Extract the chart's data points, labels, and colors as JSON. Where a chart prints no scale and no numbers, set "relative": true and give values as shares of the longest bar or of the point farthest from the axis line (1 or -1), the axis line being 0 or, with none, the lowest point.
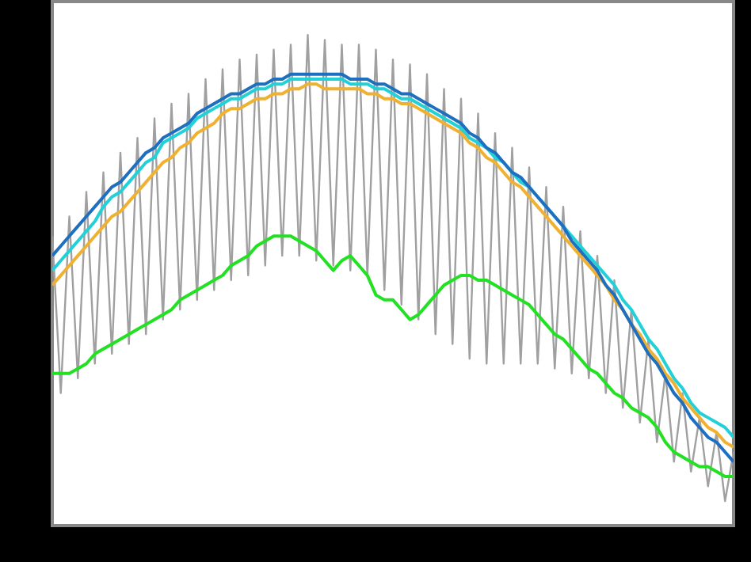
{
  "chart_data": {
    "type": "line",
    "relative": true,
    "categories": [
      null,
      null,
      null,
      null,
      null,
      null,
      null,
      null,
      null,
      null,
      null,
      null,
      null,
      null,
      null,
      null,
      null,
      null,
      null,
      null,
      null,
      null,
      null,
      null,
      null,
      null,
      null,
      null,
      null,
      null,
      null,
      null,
      null,
      null,
      null,
      null,
      null,
      null,
      null,
      null,
      null,
      null,
      null,
      null,
      null,
      null,
      null,
      null,
      null,
      null,
      null,
      null,
      null,
      null,
      null,
      null,
      null,
      null,
      null,
      null,
      null,
      null,
      null,
      null,
      null,
      null,
      null,
      null,
      null,
      null,
      null,
      null,
      null,
      null,
      null,
      null,
      null,
      null,
      null,
      null,
      null
    ],
    "series": [
      {
        "color": "#a0a0a0",
        "values": [
          0.59,
          0.27,
          0.63,
          0.3,
          0.68,
          0.33,
          0.72,
          0.35,
          0.76,
          0.37,
          0.79,
          0.39,
          0.83,
          0.42,
          0.86,
          0.44,
          0.88,
          0.46,
          0.91,
          0.48,
          0.93,
          0.5,
          0.95,
          0.51,
          0.96,
          0.53,
          0.97,
          0.55,
          0.98,
          0.55,
          1.0,
          0.54,
          0.99,
          0.53,
          0.98,
          0.52,
          0.98,
          0.51,
          0.97,
          0.48,
          0.95,
          0.45,
          0.94,
          0.42,
          0.92,
          0.39,
          0.89,
          0.37,
          0.87,
          0.34,
          0.84,
          0.33,
          0.8,
          0.33,
          0.77,
          0.33,
          0.73,
          0.33,
          0.69,
          0.32,
          0.65,
          0.31,
          0.6,
          0.3,
          0.55,
          0.27,
          0.5,
          0.24,
          0.44,
          0.21,
          0.38,
          0.17,
          0.31,
          0.13,
          0.27,
          0.11,
          0.22,
          0.08,
          0.19,
          0.05,
          0.15
        ]
      },
      {
        "color": "#22e022",
        "values": [
          0.31,
          0.31,
          0.31,
          0.32,
          0.33,
          0.35,
          0.36,
          0.37,
          0.38,
          0.39,
          0.4,
          0.41,
          0.42,
          0.43,
          0.44,
          0.46,
          0.47,
          0.48,
          0.49,
          0.5,
          0.51,
          0.53,
          0.54,
          0.55,
          0.57,
          0.58,
          0.59,
          0.59,
          0.59,
          0.58,
          0.57,
          0.56,
          0.54,
          0.52,
          0.54,
          0.55,
          0.53,
          0.51,
          0.47,
          0.46,
          0.46,
          0.44,
          0.42,
          0.43,
          0.45,
          0.47,
          0.49,
          0.5,
          0.51,
          0.51,
          0.5,
          0.5,
          0.49,
          0.48,
          0.47,
          0.46,
          0.45,
          0.43,
          0.41,
          0.39,
          0.38,
          0.36,
          0.34,
          0.32,
          0.31,
          0.29,
          0.27,
          0.26,
          0.24,
          0.23,
          0.22,
          0.2,
          0.17,
          0.15,
          0.14,
          0.13,
          0.12,
          0.12,
          0.11,
          0.1,
          0.1
        ]
      },
      {
        "color": "#22d0d8",
        "values": [
          0.52,
          0.54,
          0.56,
          0.58,
          0.6,
          0.62,
          0.65,
          0.67,
          0.68,
          0.7,
          0.72,
          0.74,
          0.75,
          0.78,
          0.79,
          0.8,
          0.81,
          0.83,
          0.84,
          0.85,
          0.86,
          0.87,
          0.87,
          0.88,
          0.89,
          0.89,
          0.9,
          0.9,
          0.91,
          0.91,
          0.91,
          0.91,
          0.91,
          0.91,
          0.91,
          0.9,
          0.9,
          0.9,
          0.89,
          0.89,
          0.88,
          0.87,
          0.87,
          0.86,
          0.85,
          0.84,
          0.83,
          0.82,
          0.81,
          0.79,
          0.78,
          0.77,
          0.75,
          0.74,
          0.72,
          0.7,
          0.69,
          0.67,
          0.65,
          0.63,
          0.61,
          0.59,
          0.57,
          0.55,
          0.53,
          0.51,
          0.49,
          0.46,
          0.44,
          0.41,
          0.38,
          0.36,
          0.33,
          0.3,
          0.28,
          0.25,
          0.23,
          0.22,
          0.21,
          0.2,
          0.18
        ]
      },
      {
        "color": "#f0b030",
        "values": [
          0.49,
          0.51,
          0.53,
          0.55,
          0.57,
          0.59,
          0.61,
          0.63,
          0.64,
          0.66,
          0.68,
          0.7,
          0.72,
          0.74,
          0.75,
          0.77,
          0.78,
          0.8,
          0.81,
          0.82,
          0.84,
          0.85,
          0.85,
          0.86,
          0.87,
          0.87,
          0.88,
          0.88,
          0.89,
          0.89,
          0.9,
          0.9,
          0.89,
          0.89,
          0.89,
          0.89,
          0.89,
          0.88,
          0.88,
          0.87,
          0.87,
          0.86,
          0.86,
          0.85,
          0.84,
          0.83,
          0.82,
          0.81,
          0.8,
          0.78,
          0.77,
          0.75,
          0.74,
          0.72,
          0.7,
          0.69,
          0.67,
          0.65,
          0.63,
          0.61,
          0.59,
          0.57,
          0.55,
          0.53,
          0.51,
          0.49,
          0.46,
          0.44,
          0.41,
          0.39,
          0.36,
          0.34,
          0.31,
          0.29,
          0.26,
          0.24,
          0.22,
          0.2,
          0.19,
          0.17,
          0.16
        ]
      },
      {
        "color": "#1f6fc0",
        "values": [
          0.55,
          0.57,
          0.59,
          0.61,
          0.63,
          0.65,
          0.67,
          0.69,
          0.7,
          0.72,
          0.74,
          0.76,
          0.77,
          0.79,
          0.8,
          0.81,
          0.82,
          0.84,
          0.85,
          0.86,
          0.87,
          0.88,
          0.88,
          0.89,
          0.9,
          0.9,
          0.91,
          0.91,
          0.92,
          0.92,
          0.92,
          0.92,
          0.92,
          0.92,
          0.92,
          0.91,
          0.91,
          0.91,
          0.9,
          0.9,
          0.89,
          0.88,
          0.88,
          0.87,
          0.86,
          0.85,
          0.84,
          0.83,
          0.82,
          0.8,
          0.79,
          0.77,
          0.76,
          0.74,
          0.72,
          0.71,
          0.69,
          0.67,
          0.65,
          0.63,
          0.61,
          0.58,
          0.56,
          0.54,
          0.52,
          0.49,
          0.47,
          0.44,
          0.41,
          0.38,
          0.35,
          0.33,
          0.3,
          0.27,
          0.25,
          0.22,
          0.2,
          0.18,
          0.17,
          0.15,
          0.13
        ]
      }
    ]
  }
}
